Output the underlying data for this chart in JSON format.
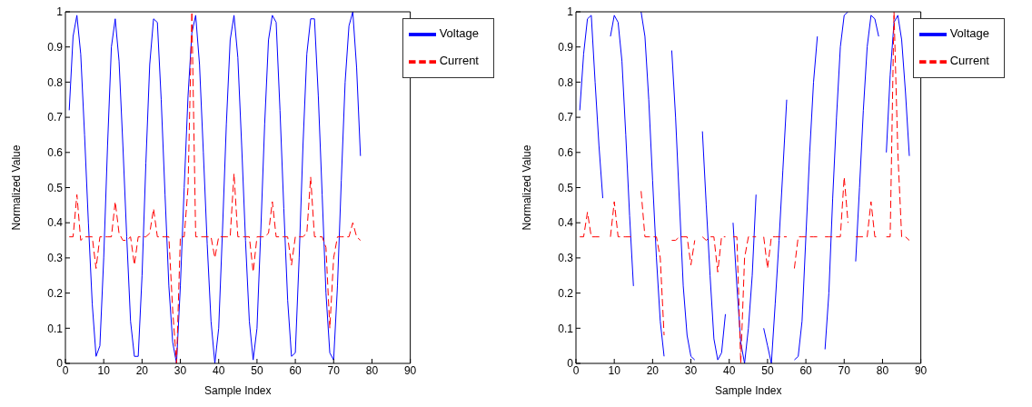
{
  "chart_data": [
    {
      "type": "line",
      "xlabel": "Sample Index",
      "ylabel": "Normalized Value",
      "xlim": [
        0,
        90
      ],
      "xticks": [
        0,
        10,
        20,
        30,
        40,
        50,
        60,
        70,
        80,
        90
      ],
      "ylim": [
        0,
        1
      ],
      "yticks": [
        0,
        0.1,
        0.2,
        0.3,
        0.4,
        0.5,
        0.6,
        0.7,
        0.8,
        0.9,
        1
      ],
      "legend": "top right",
      "x": [
        1,
        2,
        3,
        4,
        5,
        6,
        7,
        8,
        9,
        10,
        11,
        12,
        13,
        14,
        15,
        16,
        17,
        18,
        19,
        20,
        21,
        22,
        23,
        24,
        25,
        26,
        27,
        28,
        29,
        30,
        31,
        32,
        33,
        34,
        35,
        36,
        37,
        38,
        39,
        40,
        41,
        42,
        43,
        44,
        45,
        46,
        47,
        48,
        49,
        50,
        51,
        52,
        53,
        54,
        55,
        56,
        57,
        58,
        59,
        60,
        61,
        62,
        63,
        64,
        65,
        66,
        67,
        68,
        69,
        70,
        71,
        72,
        73,
        74,
        75,
        76,
        77
      ],
      "series": [
        {
          "name": "Voltage",
          "color": "#0000ff",
          "line_style": "solid",
          "values": [
            0.72,
            0.93,
            0.99,
            0.88,
            0.65,
            0.4,
            0.17,
            0.02,
            0.05,
            0.3,
            0.62,
            0.9,
            0.98,
            0.86,
            0.62,
            0.36,
            0.12,
            0.02,
            0.02,
            0.25,
            0.57,
            0.85,
            0.98,
            0.97,
            0.75,
            0.48,
            0.22,
            0.06,
            0.0,
            0.22,
            0.5,
            0.76,
            0.94,
            0.99,
            0.85,
            0.6,
            0.34,
            0.12,
            0.0,
            0.1,
            0.38,
            0.68,
            0.92,
            0.99,
            0.87,
            0.62,
            0.35,
            0.12,
            0.01,
            0.1,
            0.38,
            0.68,
            0.92,
            0.99,
            0.97,
            0.72,
            0.44,
            0.18,
            0.02,
            0.03,
            0.3,
            0.62,
            0.88,
            0.98,
            0.98,
            0.76,
            0.48,
            0.2,
            0.03,
            0.01,
            0.22,
            0.52,
            0.8,
            0.96,
            1.0,
            0.84,
            0.59
          ]
        },
        {
          "name": "Current",
          "color": "#ff0000",
          "line_style": "dashed",
          "values": [
            0.36,
            0.36,
            0.48,
            0.35,
            0.36,
            0.36,
            0.36,
            0.27,
            0.36,
            0.36,
            0.36,
            0.36,
            0.46,
            0.37,
            0.35,
            0.35,
            0.36,
            0.28,
            0.36,
            0.36,
            0.36,
            0.37,
            0.44,
            0.36,
            0.36,
            0.36,
            0.36,
            0.15,
            0.0,
            0.36,
            0.36,
            0.5,
            1.0,
            0.36,
            0.36,
            0.36,
            0.36,
            0.36,
            0.3,
            0.36,
            0.36,
            0.36,
            0.36,
            0.54,
            0.36,
            0.36,
            0.36,
            0.36,
            0.26,
            0.36,
            0.36,
            0.36,
            0.37,
            0.46,
            0.36,
            0.36,
            0.36,
            0.36,
            0.28,
            0.36,
            0.36,
            0.36,
            0.37,
            0.53,
            0.36,
            0.36,
            0.36,
            0.33,
            0.1,
            0.3,
            0.36,
            0.36,
            0.36,
            0.36,
            0.4,
            0.36,
            0.35
          ]
        }
      ]
    },
    {
      "type": "line",
      "xlabel": "Sample Index",
      "ylabel": "Normalized Value",
      "xlim": [
        0,
        90
      ],
      "xticks": [
        0,
        10,
        20,
        30,
        40,
        50,
        60,
        70,
        80,
        90
      ],
      "ylim": [
        0,
        1
      ],
      "yticks": [
        0,
        0.1,
        0.2,
        0.3,
        0.4,
        0.5,
        0.6,
        0.7,
        0.8,
        0.9,
        1
      ],
      "legend": "top right",
      "x": [
        1,
        2,
        3,
        4,
        5,
        6,
        7,
        8,
        9,
        10,
        11,
        12,
        13,
        14,
        15,
        16,
        17,
        18,
        19,
        20,
        21,
        22,
        23,
        24,
        25,
        26,
        27,
        28,
        29,
        30,
        31,
        32,
        33,
        34,
        35,
        36,
        37,
        38,
        39,
        40,
        41,
        42,
        43,
        44,
        45,
        46,
        47,
        48,
        49,
        50,
        51,
        52,
        53,
        54,
        55,
        56,
        57,
        58,
        59,
        60,
        61,
        62,
        63,
        64,
        65,
        66,
        67,
        68,
        69,
        70,
        71,
        72,
        73,
        74,
        75,
        76,
        77,
        78,
        79,
        80,
        81,
        82,
        83,
        84,
        85,
        86,
        87
      ],
      "series": [
        {
          "name": "Voltage",
          "color": "#0000ff",
          "line_style": "solid",
          "values": [
            0.72,
            0.88,
            0.98,
            0.99,
            0.8,
            0.62,
            0.47,
            null,
            0.93,
            0.99,
            0.97,
            0.86,
            0.65,
            0.42,
            0.22,
            null,
            1.0,
            0.93,
            0.75,
            0.52,
            0.3,
            0.12,
            0.02,
            null,
            0.89,
            0.7,
            0.46,
            0.22,
            0.08,
            0.02,
            0.01,
            null,
            0.66,
            0.45,
            0.25,
            0.07,
            0.01,
            0.03,
            0.14,
            null,
            0.4,
            0.22,
            0.06,
            0.0,
            0.1,
            0.25,
            0.48,
            null,
            0.1,
            0.05,
            0.0,
            0.17,
            0.35,
            0.55,
            0.75,
            null,
            0.01,
            0.02,
            0.12,
            0.36,
            0.6,
            0.8,
            0.93,
            null,
            0.04,
            0.2,
            0.47,
            0.7,
            0.9,
            0.99,
            1.0,
            null,
            0.29,
            0.5,
            0.72,
            0.9,
            0.99,
            0.98,
            0.93,
            null,
            0.6,
            0.82,
            0.97,
            0.99,
            0.92,
            0.77,
            0.59
          ]
        },
        {
          "name": "Current",
          "color": "#ff0000",
          "line_style": "dashed",
          "values": [
            0.36,
            0.36,
            0.43,
            0.36,
            0.36,
            0.36,
            0.36,
            null,
            0.36,
            0.46,
            0.36,
            0.36,
            0.36,
            0.36,
            0.36,
            null,
            0.49,
            0.36,
            0.36,
            0.36,
            0.36,
            0.3,
            0.08,
            null,
            0.35,
            0.35,
            0.36,
            0.36,
            0.36,
            0.28,
            0.35,
            null,
            0.36,
            0.35,
            0.36,
            0.36,
            0.26,
            0.36,
            0.36,
            null,
            0.36,
            0.36,
            0.0,
            0.3,
            0.36,
            0.36,
            0.36,
            null,
            0.36,
            0.27,
            0.36,
            0.36,
            0.36,
            0.36,
            0.36,
            null,
            0.27,
            0.36,
            0.36,
            0.36,
            0.36,
            0.36,
            0.36,
            null,
            0.36,
            0.36,
            0.36,
            0.36,
            0.36,
            0.53,
            0.4,
            null,
            0.36,
            0.36,
            0.36,
            0.36,
            0.46,
            0.36,
            0.36,
            null,
            0.36,
            0.36,
            1.0,
            0.6,
            0.36,
            0.36,
            0.35
          ]
        }
      ]
    }
  ]
}
